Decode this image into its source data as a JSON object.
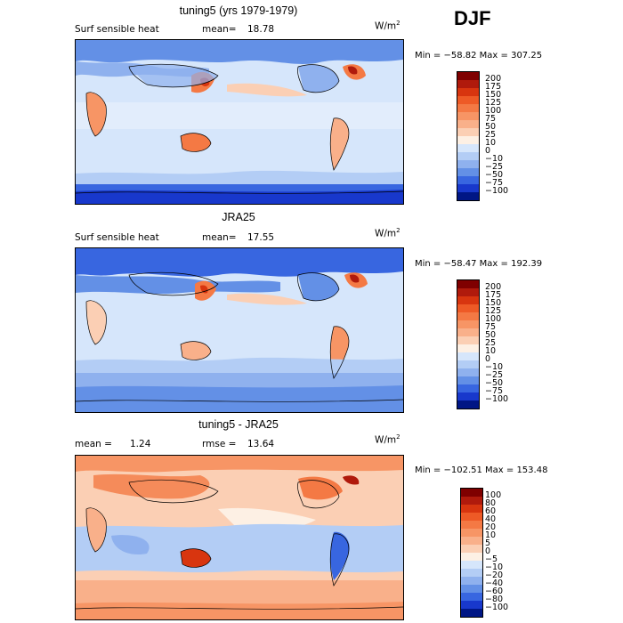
{
  "season": "DJF",
  "panels": [
    {
      "id": "model",
      "title": "tuning5 (yrs 1979-1979)",
      "left_label": "Surf sensible heat",
      "stat_label": "mean=",
      "stat_value": "18.78",
      "units_base": "W/m",
      "units_exp": "2",
      "minmax": "Min = −58.82 Max = 307.25",
      "colorbar_labels": [
        "200",
        "175",
        "150",
        "125",
        "100",
        "75",
        "50",
        "25",
        "10",
        "0",
        "−10",
        "−25",
        "−50",
        "−75",
        "−100"
      ],
      "colorbar_colors": [
        "#7f0000",
        "#b01a0c",
        "#d8350f",
        "#ee5a26",
        "#f47944",
        "#f79565",
        "#f9b08a",
        "#fbcfb4",
        "#fdf0e4",
        "#d6e6fb",
        "#b3cdf5",
        "#8fb1ee",
        "#6390e6",
        "#3866e0",
        "#1838cc",
        "#001685"
      ]
    },
    {
      "id": "obs",
      "title": "JRA25",
      "left_label": "Surf sensible heat",
      "stat_label": "mean=",
      "stat_value": "17.55",
      "units_base": "W/m",
      "units_exp": "2",
      "minmax": "Min = −58.47 Max = 192.39",
      "colorbar_labels": [
        "200",
        "175",
        "150",
        "125",
        "100",
        "75",
        "50",
        "25",
        "10",
        "0",
        "−10",
        "−25",
        "−50",
        "−75",
        "−100"
      ],
      "colorbar_colors": [
        "#7f0000",
        "#b01a0c",
        "#d8350f",
        "#ee5a26",
        "#f47944",
        "#f79565",
        "#f9b08a",
        "#fbcfb4",
        "#fdf0e4",
        "#d6e6fb",
        "#b3cdf5",
        "#8fb1ee",
        "#6390e6",
        "#3866e0",
        "#1838cc",
        "#001685"
      ]
    },
    {
      "id": "diff",
      "title": "tuning5 - JRA25",
      "left_label": "mean =",
      "left_value": "1.24",
      "stat_label": "rmse =",
      "stat_value": "13.64",
      "units_base": "W/m",
      "units_exp": "2",
      "minmax": "Min = −102.51 Max = 153.48",
      "colorbar_labels": [
        "100",
        "80",
        "60",
        "40",
        "20",
        "10",
        "5",
        "0",
        "−5",
        "−10",
        "−20",
        "−40",
        "−60",
        "−80",
        "−100"
      ],
      "colorbar_colors": [
        "#7f0000",
        "#b01a0c",
        "#d8350f",
        "#ee5a26",
        "#f47944",
        "#f79565",
        "#f9b08a",
        "#fbcfb4",
        "#fdf0e4",
        "#d6e6fb",
        "#b3cdf5",
        "#8fb1ee",
        "#6390e6",
        "#3866e0",
        "#1838cc",
        "#001685"
      ]
    }
  ]
}
